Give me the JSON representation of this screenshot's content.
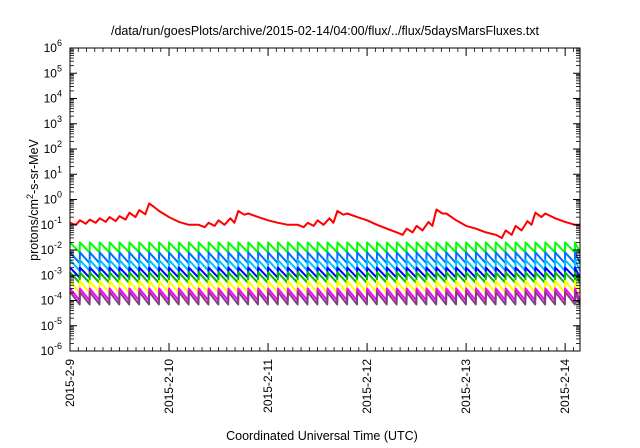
{
  "chart_data": {
    "type": "line",
    "title": "/data/run/goesPlots/archive/2015-02-14/04:00/flux/../flux/5daysMarsFluxes.txt",
    "xlabel": "Coordinated Universal Time (UTC)",
    "ylabel_parts": {
      "base": "protons/cm",
      "sup": "2",
      "rest": "-s-sr-MeV"
    },
    "x_unit": "days since 2015-02-09 00:00 UTC",
    "xlim": [
      0,
      5.15
    ],
    "ylim_exp": [
      -6,
      6
    ],
    "y_scale": "log",
    "x_ticks": [
      {
        "label": "2015-2-9",
        "value": 0
      },
      {
        "label": "2015-2-10",
        "value": 1
      },
      {
        "label": "2015-2-11",
        "value": 2
      },
      {
        "label": "2015-2-12",
        "value": 3
      },
      {
        "label": "2015-2-13",
        "value": 4
      },
      {
        "label": "2015-2-14",
        "value": 5
      }
    ],
    "y_ticks": [
      {
        "base": "10",
        "exp": "-6",
        "value": -6
      },
      {
        "base": "10",
        "exp": "-5",
        "value": -5
      },
      {
        "base": "10",
        "exp": "-4",
        "value": -4
      },
      {
        "base": "10",
        "exp": "-3",
        "value": -3
      },
      {
        "base": "10",
        "exp": "-2",
        "value": -2
      },
      {
        "base": "10",
        "exp": "-1",
        "value": -1
      },
      {
        "base": "10",
        "exp": "0",
        "value": 0
      },
      {
        "base": "10",
        "exp": "1",
        "value": 1
      },
      {
        "base": "10",
        "exp": "2",
        "value": 2
      },
      {
        "base": "10",
        "exp": "3",
        "value": 3
      },
      {
        "base": "10",
        "exp": "4",
        "value": 4
      },
      {
        "base": "10",
        "exp": "5",
        "value": 5
      },
      {
        "base": "10",
        "exp": "6",
        "value": 6
      }
    ],
    "grid": false,
    "legend": "none",
    "series": [
      {
        "color": "#ff0000",
        "x": [
          0,
          0.06,
          0.1,
          0.16,
          0.2,
          0.26,
          0.3,
          0.36,
          0.4,
          0.46,
          0.5,
          0.56,
          0.6,
          0.66,
          0.7,
          0.76,
          0.8,
          0.85,
          0.9,
          1.0,
          1.1,
          1.2,
          1.3,
          1.36,
          1.4,
          1.46,
          1.5,
          1.56,
          1.62,
          1.66,
          1.7,
          1.76,
          1.8,
          1.9,
          2.0,
          2.1,
          2.2,
          2.3,
          2.36,
          2.4,
          2.46,
          2.5,
          2.56,
          2.62,
          2.66,
          2.7,
          2.76,
          2.8,
          2.9,
          3.0,
          3.1,
          3.2,
          3.3,
          3.36,
          3.4,
          3.46,
          3.5,
          3.56,
          3.62,
          3.66,
          3.7,
          3.76,
          3.8,
          3.9,
          4.0,
          4.1,
          4.2,
          4.3,
          4.36,
          4.4,
          4.46,
          4.5,
          4.56,
          4.62,
          4.66,
          4.7,
          4.76,
          4.8,
          4.9,
          5.0,
          5.1,
          5.15
        ],
        "values": [
          0.12,
          0.1,
          0.15,
          0.11,
          0.16,
          0.12,
          0.18,
          0.13,
          0.2,
          0.14,
          0.22,
          0.16,
          0.3,
          0.2,
          0.38,
          0.26,
          0.7,
          0.5,
          0.35,
          0.2,
          0.13,
          0.1,
          0.1,
          0.08,
          0.12,
          0.09,
          0.15,
          0.1,
          0.18,
          0.12,
          0.35,
          0.25,
          0.28,
          0.2,
          0.15,
          0.12,
          0.1,
          0.1,
          0.08,
          0.12,
          0.09,
          0.15,
          0.1,
          0.18,
          0.12,
          0.35,
          0.25,
          0.28,
          0.2,
          0.15,
          0.1,
          0.07,
          0.05,
          0.04,
          0.07,
          0.05,
          0.09,
          0.06,
          0.13,
          0.09,
          0.4,
          0.28,
          0.28,
          0.15,
          0.09,
          0.07,
          0.05,
          0.04,
          0.03,
          0.06,
          0.04,
          0.09,
          0.06,
          0.14,
          0.1,
          0.3,
          0.2,
          0.28,
          0.18,
          0.13,
          0.1,
          0.1
        ]
      },
      {
        "color": "#00ff00",
        "sawtooth": {
          "period": 0.1,
          "high": 0.02,
          "low": 0.008
        }
      },
      {
        "color": "#0070ff",
        "sawtooth": {
          "period": 0.1,
          "high": 0.008,
          "low": 0.003
        }
      },
      {
        "color": "#00c0ff",
        "sawtooth": {
          "period": 0.1,
          "high": 0.004,
          "low": 0.0015
        }
      },
      {
        "color": "#0000ff",
        "sawtooth": {
          "period": 0.1,
          "high": 0.002,
          "low": 0.0008
        }
      },
      {
        "color": "#00c000",
        "sawtooth": {
          "period": 0.1,
          "high": 0.0013,
          "low": 0.0005
        }
      },
      {
        "color": "#ffff00",
        "sawtooth": {
          "period": 0.1,
          "high": 0.0006,
          "low": 0.0002
        }
      },
      {
        "color": "#ff00ff",
        "sawtooth": {
          "period": 0.1,
          "high": 0.0003,
          "low": 0.0001
        }
      },
      {
        "color": "#804080",
        "sawtooth": {
          "period": 0.1,
          "high": 0.00022,
          "low": 7e-05
        }
      }
    ]
  }
}
